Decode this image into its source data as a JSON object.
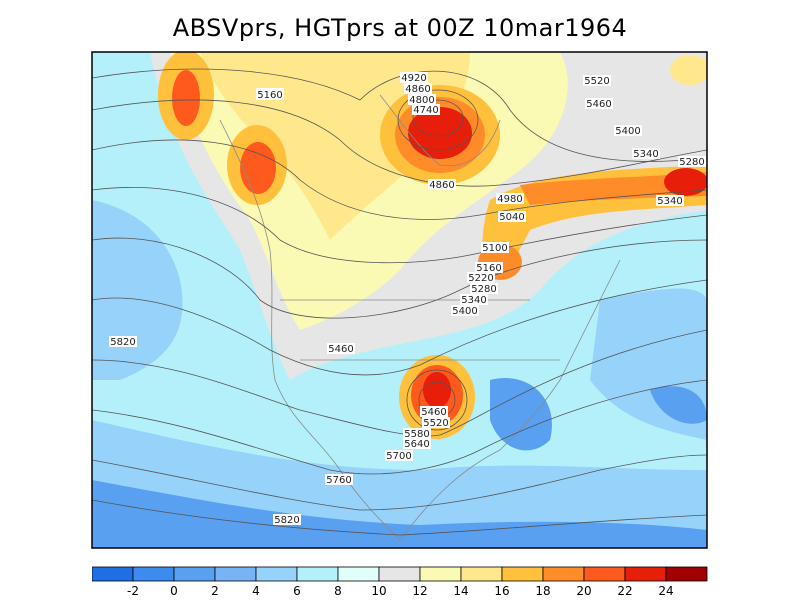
{
  "title": "ABSVprs, HGTprs at 00Z  10mar1964",
  "colorbar": {
    "colors": [
      "#1e6ee6",
      "#3c8cf0",
      "#5aa0f0",
      "#78b4f5",
      "#96d2fa",
      "#b4f0fa",
      "#e1fffa",
      "#e6e6e6",
      "#fafab4",
      "#ffe88c",
      "#ffc03c",
      "#ff8c28",
      "#ff5a1e",
      "#e61e0a",
      "#a00000"
    ],
    "tick_labels": [
      "-2",
      "0",
      "2",
      "4",
      "6",
      "8",
      "10",
      "12",
      "14",
      "16",
      "18",
      "20",
      "22",
      "24"
    ]
  },
  "contour_labels": {
    "c5160_nw": "5160",
    "c4920": "4920",
    "c4860a": "4860",
    "c4800": "4800",
    "c4740": "4740",
    "c4860b": "4860",
    "c4980": "4980",
    "c5040": "5040",
    "c5100": "5100",
    "c5160_e": "5160",
    "c5220": "5220",
    "c5280": "5280",
    "c5340": "5340",
    "c5400": "5400",
    "c5460_w": "5460",
    "c5460_s": "5460",
    "c5520_s": "5520",
    "c5580": "5580",
    "c5640": "5640",
    "c5700": "5700",
    "c5760": "5760",
    "c5820_s": "5820",
    "c5820_w": "5820",
    "c5520_ne": "5520",
    "c5460_ne": "5460",
    "c5400_ne": "5400",
    "c5340_ne": "5340",
    "c5280_ne": "5280",
    "c5340_e": "5340"
  }
}
